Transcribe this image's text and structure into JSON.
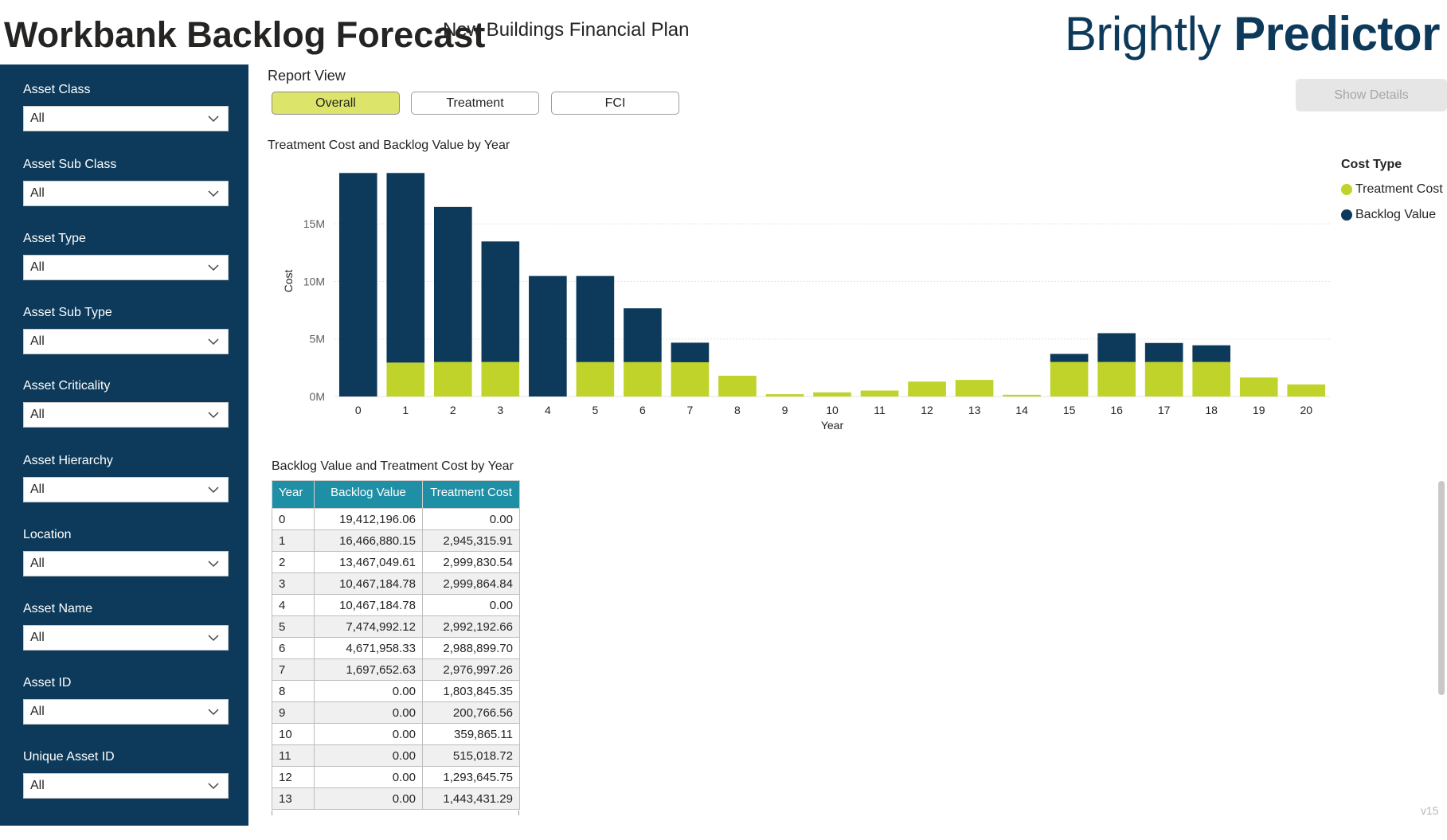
{
  "header": {
    "title": "Workbank Backlog Forecast",
    "subtitle": "New Buildings Financial Plan",
    "logo_light": "Brightly",
    "logo_bold": "Predictor"
  },
  "filters": [
    {
      "label": "Asset Class",
      "value": "All"
    },
    {
      "label": "Asset Sub Class",
      "value": "All"
    },
    {
      "label": "Asset Type",
      "value": "All"
    },
    {
      "label": "Asset Sub Type",
      "value": "All"
    },
    {
      "label": "Asset Criticality",
      "value": "All"
    },
    {
      "label": "Asset Hierarchy",
      "value": "All"
    },
    {
      "label": "Location",
      "value": "All"
    },
    {
      "label": "Asset Name",
      "value": "All"
    },
    {
      "label": "Asset ID",
      "value": "All"
    },
    {
      "label": "Unique Asset ID",
      "value": "All"
    }
  ],
  "report_view": {
    "label": "Report View",
    "buttons": [
      "Overall",
      "Treatment",
      "FCI"
    ],
    "active": "Overall"
  },
  "show_details_label": "Show Details",
  "chart_data": {
    "type": "bar",
    "title": "Treatment Cost and Backlog Value by Year",
    "xlabel": "Year",
    "ylabel": "Cost",
    "categories": [
      "0",
      "1",
      "2",
      "3",
      "4",
      "5",
      "6",
      "7",
      "8",
      "9",
      "10",
      "11",
      "12",
      "13",
      "14",
      "15",
      "16",
      "17",
      "18",
      "19",
      "20"
    ],
    "ylim": [
      0,
      19500000
    ],
    "yticks": [
      0,
      5000000,
      10000000,
      15000000
    ],
    "ytick_labels": [
      "0M",
      "5M",
      "10M",
      "15M"
    ],
    "stacked": true,
    "legend_title": "Cost Type",
    "legend_position": "top-right",
    "series": [
      {
        "name": "Treatment Cost",
        "color": "#bfd32a",
        "values": [
          0,
          2945315.91,
          2999830.54,
          2999864.84,
          0,
          2992192.66,
          2988899.7,
          2976997.26,
          1803845.35,
          200766.56,
          359865.11,
          515018.72,
          1293645.75,
          1443431.29,
          150000,
          3000000,
          3000000,
          3000000,
          3000000,
          1650000,
          1050000
        ]
      },
      {
        "name": "Backlog Value",
        "color": "#0d3a5a",
        "values": [
          19412196.06,
          16466880.15,
          13467049.61,
          10467184.78,
          10467184.78,
          7474992.12,
          4671958.33,
          1697652.63,
          0,
          0,
          0,
          0,
          0,
          0,
          0,
          700000,
          2500000,
          1650000,
          1450000,
          0,
          0
        ]
      }
    ]
  },
  "table": {
    "title": "Backlog Value and Treatment Cost by Year",
    "columns": [
      "Year",
      "Backlog Value",
      "Treatment Cost"
    ],
    "rows": [
      [
        "0",
        "19,412,196.06",
        "0.00"
      ],
      [
        "1",
        "16,466,880.15",
        "2,945,315.91"
      ],
      [
        "2",
        "13,467,049.61",
        "2,999,830.54"
      ],
      [
        "3",
        "10,467,184.78",
        "2,999,864.84"
      ],
      [
        "4",
        "10,467,184.78",
        "0.00"
      ],
      [
        "5",
        "7,474,992.12",
        "2,992,192.66"
      ],
      [
        "6",
        "4,671,958.33",
        "2,988,899.70"
      ],
      [
        "7",
        "1,697,652.63",
        "2,976,997.26"
      ],
      [
        "8",
        "0.00",
        "1,803,845.35"
      ],
      [
        "9",
        "0.00",
        "200,766.56"
      ],
      [
        "10",
        "0.00",
        "359,865.11"
      ],
      [
        "11",
        "0.00",
        "515,018.72"
      ],
      [
        "12",
        "0.00",
        "1,293,645.75"
      ],
      [
        "13",
        "0.00",
        "1,443,431.29"
      ]
    ]
  },
  "version": "v15"
}
